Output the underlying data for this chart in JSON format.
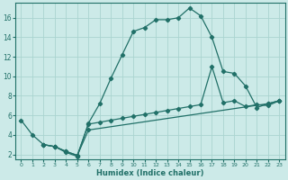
{
  "xlabel": "Humidex (Indice chaleur)",
  "xlim": [
    -0.5,
    23.5
  ],
  "ylim": [
    1.5,
    17.5
  ],
  "yticks": [
    2,
    4,
    6,
    8,
    10,
    12,
    14,
    16
  ],
  "xticks": [
    0,
    1,
    2,
    3,
    4,
    5,
    6,
    7,
    8,
    9,
    10,
    11,
    12,
    13,
    14,
    15,
    16,
    17,
    18,
    19,
    20,
    21,
    22,
    23
  ],
  "background_color": "#cceae8",
  "grid_color": "#aad4d0",
  "line_color": "#217068",
  "line1_x": [
    0,
    1,
    2,
    3,
    4,
    5,
    6,
    7,
    8,
    9,
    10,
    11,
    12,
    13,
    14,
    15,
    16,
    17,
    18,
    19,
    20,
    21,
    22,
    23
  ],
  "line1_y": [
    5.5,
    4.0,
    3.0,
    2.8,
    2.2,
    1.8,
    5.2,
    7.2,
    9.8,
    12.2,
    14.6,
    15.0,
    15.8,
    15.8,
    16.0,
    17.0,
    16.2,
    14.0,
    10.5,
    10.3,
    9.0,
    6.8,
    7.2,
    7.5
  ],
  "line2_x": [
    2,
    3,
    4,
    5,
    6,
    7,
    8,
    9,
    10,
    11,
    12,
    13,
    14,
    15,
    16,
    17,
    18,
    19,
    20,
    21,
    22,
    23
  ],
  "line2_y": [
    3.0,
    2.8,
    2.3,
    1.9,
    5.1,
    5.3,
    5.5,
    5.7,
    5.9,
    6.1,
    6.3,
    6.5,
    6.7,
    6.9,
    7.1,
    11.0,
    7.3,
    7.5,
    6.9,
    7.1,
    7.0,
    7.5
  ],
  "line3_x": [
    2,
    3,
    4,
    5,
    6,
    22,
    23
  ],
  "line3_y": [
    3.0,
    2.8,
    2.3,
    1.9,
    4.5,
    7.2,
    7.5
  ]
}
